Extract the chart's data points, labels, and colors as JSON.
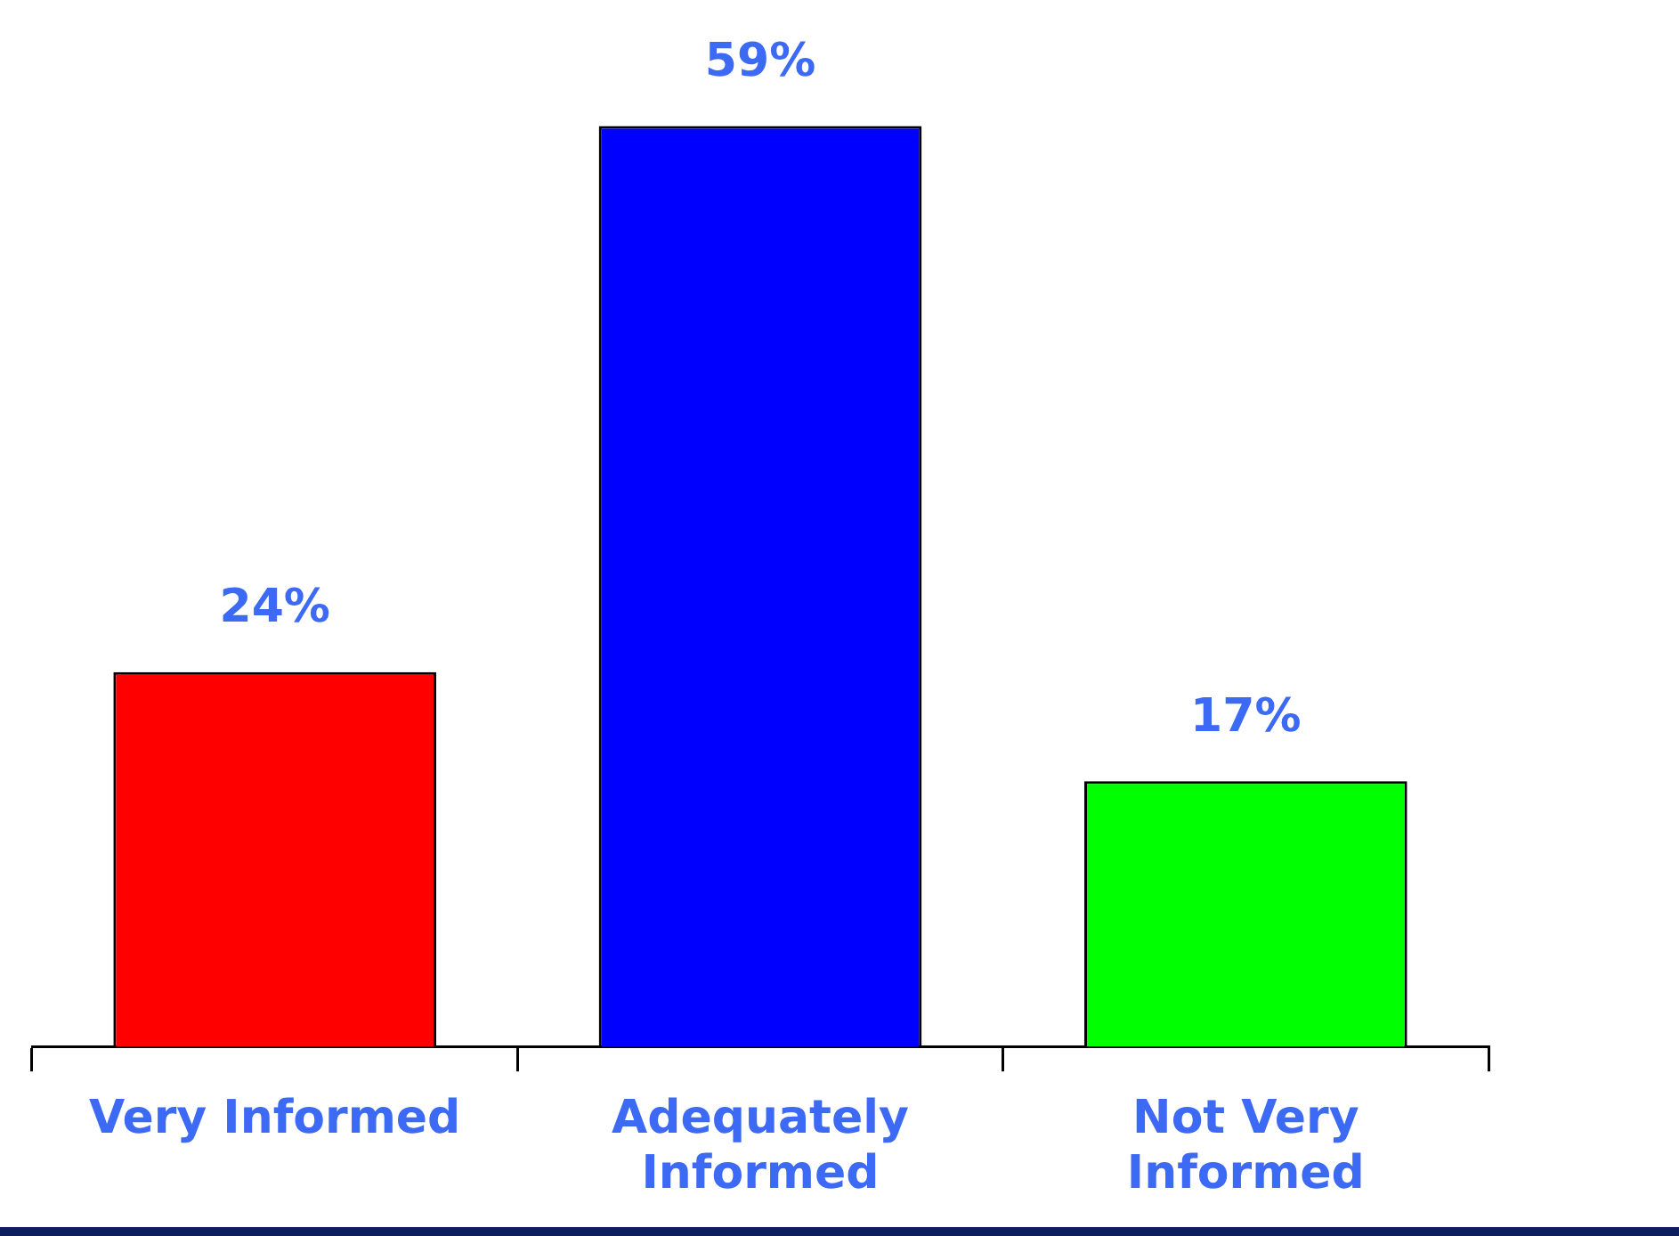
{
  "chart_data": {
    "type": "bar",
    "categories": [
      "Very Informed",
      "Adequately Informed",
      "Not Very Informed"
    ],
    "values": [
      24,
      59,
      17
    ],
    "colors": [
      "#ff0000",
      "#0000ff",
      "#00ff00"
    ],
    "value_labels": [
      "24%",
      "59%",
      "17%"
    ]
  }
}
